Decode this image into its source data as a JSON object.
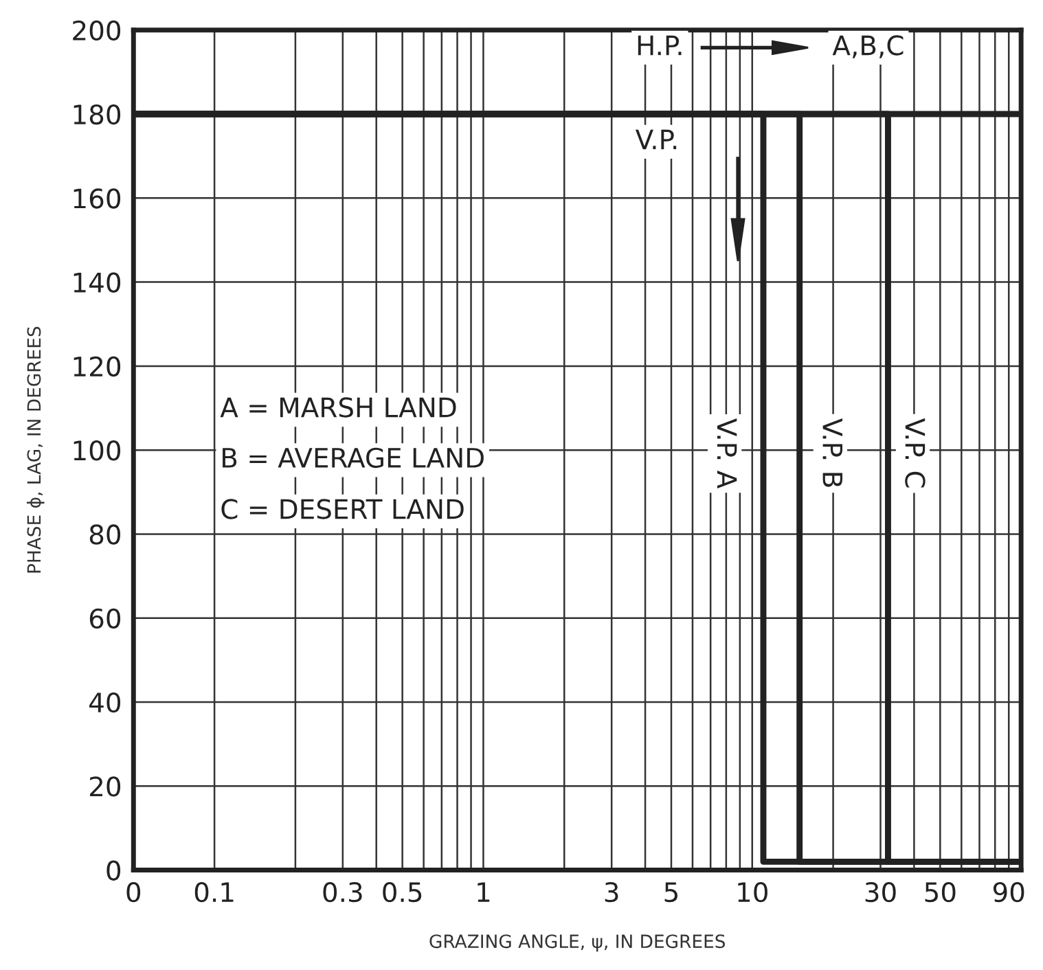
{
  "chart_data": {
    "type": "line",
    "xlabel": "GRAZING ANGLE, ψ, IN DEGREES",
    "ylabel": "PHASE ϕ, LAG, IN DEGREES",
    "log": "x",
    "xlim": [
      0.05,
      100
    ],
    "xticks": [
      {
        "value": 0.05,
        "label": "0"
      },
      0.1,
      {
        "value": 0.2,
        "label": null
      },
      0.3,
      {
        "value": 0.4,
        "label": null
      },
      0.5,
      {
        "value": 0.6,
        "label": null
      },
      {
        "value": 0.7,
        "label": null
      },
      {
        "value": 0.8,
        "label": null
      },
      {
        "value": 0.9,
        "label": null
      },
      1,
      {
        "value": 2,
        "label": null
      },
      3,
      {
        "value": 4,
        "label": null
      },
      5,
      {
        "value": 6,
        "label": null
      },
      {
        "value": 7,
        "label": null
      },
      {
        "value": 8,
        "label": null
      },
      {
        "value": 9,
        "label": null
      },
      10,
      {
        "value": 20,
        "label": null
      },
      30,
      {
        "value": 40,
        "label": null
      },
      50,
      {
        "value": 60,
        "label": null
      },
      {
        "value": 70,
        "label": null
      },
      {
        "value": 80,
        "label": null
      },
      90
    ],
    "ylim": [
      0,
      200
    ],
    "yticks": [
      0,
      20,
      40,
      60,
      80,
      100,
      120,
      140,
      160,
      180,
      200
    ],
    "grid": true,
    "series": [
      {
        "color": "#222222",
        "x": [
          0.05,
          100
        ],
        "values": [
          180,
          180
        ]
      },
      {
        "color": "#222222",
        "x": [
          0.05,
          11,
          11,
          100
        ],
        "values": [
          180,
          180,
          2,
          2
        ]
      },
      {
        "color": "#222222",
        "x": [
          0.05,
          15,
          15,
          100
        ],
        "values": [
          180,
          180,
          2,
          2
        ]
      },
      {
        "color": "#222222",
        "x": [
          0.05,
          32,
          32,
          100
        ],
        "values": [
          180,
          180,
          2,
          2
        ]
      }
    ],
    "annotations": [
      "H.P.",
      "A,B,C",
      "V.P.",
      "V.P. A",
      "V.P. B",
      "V.P. C",
      "A = MARSH LAND",
      "B = AVERAGE LAND",
      "C = DESERT LAND"
    ]
  }
}
